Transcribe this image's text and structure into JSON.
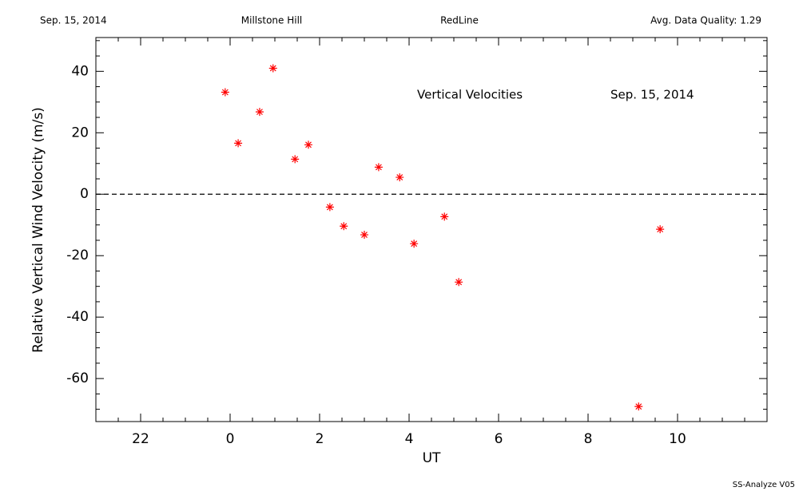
{
  "header": {
    "date": "Sep. 15, 2014",
    "site": "Millstone Hill",
    "filter": "RedLine",
    "quality": "Avg. Data Quality: 1.29"
  },
  "footer": "SS-Analyze V05",
  "chart_data": {
    "type": "scatter",
    "annotations": [
      "Vertical Velocities",
      "Sep. 15, 2014"
    ],
    "xlabel": "UT",
    "ylabel": "Relative Vertical Wind Velocity (m/s)",
    "color": "#ff0000",
    "x": [
      -0.11,
      0.18,
      0.66,
      0.96,
      1.45,
      1.75,
      2.23,
      2.54,
      3.0,
      3.32,
      3.79,
      4.11,
      4.79,
      5.11,
      9.13,
      9.61
    ],
    "values": [
      33.2,
      16.6,
      26.8,
      41.0,
      11.4,
      16.1,
      -4.2,
      -10.4,
      -13.2,
      8.8,
      5.5,
      -16.1,
      -7.3,
      -28.6,
      -69.1,
      -11.4
    ],
    "xlim": [
      -3,
      12
    ],
    "ylim": [
      -74,
      51
    ],
    "xticks": [
      {
        "value": -2,
        "label": "22"
      },
      0,
      2,
      4,
      6,
      8,
      10
    ],
    "yticks": [
      -60,
      -40,
      -20,
      0,
      20,
      40
    ],
    "xminor_ticks": [
      -2.5,
      -1.5,
      -1,
      -0.5,
      0.5,
      1,
      1.5,
      2.5,
      3,
      3.5,
      4.5,
      5,
      5.5,
      6.5,
      7,
      7.5,
      8.5,
      9,
      9.5,
      10.5,
      11,
      11.5
    ],
    "yminor_ticks": [
      -70,
      -65,
      -55,
      -50,
      -45,
      -35,
      -30,
      -25,
      -15,
      -10,
      -5,
      5,
      10,
      15,
      25,
      30,
      35,
      45,
      50
    ],
    "reference_line": 0
  }
}
